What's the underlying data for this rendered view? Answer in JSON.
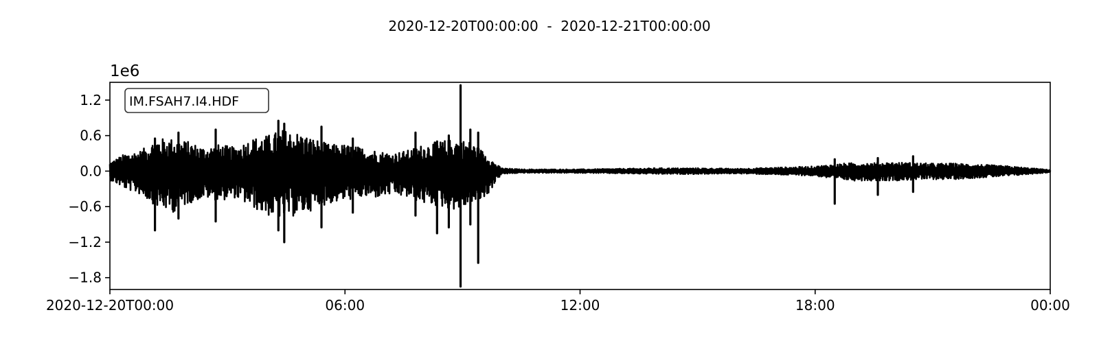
{
  "chart_data": {
    "type": "line",
    "title": "2020-12-20T00:00:00  -  2020-12-21T00:00:00",
    "offset_label": "1e6",
    "legend_label": "IM.FSAH7.I4.HDF",
    "legend_placement": "top-left",
    "grid": false,
    "xlabel": "",
    "ylabel": "",
    "x_range": [
      "2020-12-20T00:00:00",
      "2020-12-21T00:00:00"
    ],
    "xlim_hours": [
      0,
      24
    ],
    "ylim": [
      -2.0,
      1.5
    ],
    "x_ticks": [
      {
        "hour": 0,
        "label": "2020-12-20T00:00"
      },
      {
        "hour": 6,
        "label": "06:00"
      },
      {
        "hour": 12,
        "label": "12:00"
      },
      {
        "hour": 18,
        "label": "18:00"
      },
      {
        "hour": 24,
        "label": "00:00"
      }
    ],
    "y_ticks": [
      {
        "value": 1.2,
        "label": "1.2"
      },
      {
        "value": 0.6,
        "label": "0.6"
      },
      {
        "value": 0.0,
        "label": "0.0"
      },
      {
        "value": -0.6,
        "label": "−0.6"
      },
      {
        "value": -1.2,
        "label": "−1.2"
      },
      {
        "value": -1.8,
        "label": "−1.8"
      }
    ],
    "series": [
      {
        "color": "#000000",
        "envelope": {
          "hour": [
            0,
            0.4,
            0.8,
            1.2,
            1.6,
            2.0,
            2.4,
            2.8,
            3.2,
            3.6,
            4.0,
            4.4,
            4.8,
            5.2,
            5.6,
            6.0,
            6.4,
            6.8,
            7.2,
            7.6,
            8.0,
            8.4,
            8.8,
            9.2,
            9.6,
            9.85,
            10.0,
            10.5,
            11,
            12,
            13,
            14,
            15,
            16,
            17,
            18,
            18.5,
            19,
            19.5,
            20,
            20.5,
            21,
            21.5,
            22,
            22.5,
            23,
            23.5,
            24
          ],
          "upper": [
            0.15,
            0.3,
            0.35,
            0.55,
            0.55,
            0.5,
            0.4,
            0.45,
            0.4,
            0.55,
            0.6,
            0.7,
            0.65,
            0.55,
            0.45,
            0.45,
            0.4,
            0.35,
            0.3,
            0.35,
            0.45,
            0.5,
            0.55,
            0.5,
            0.3,
            0.12,
            0.05,
            0.03,
            0.03,
            0.03,
            0.04,
            0.05,
            0.05,
            0.04,
            0.06,
            0.08,
            0.12,
            0.14,
            0.14,
            0.15,
            0.14,
            0.13,
            0.13,
            0.12,
            0.1,
            0.08,
            0.05,
            0.02
          ],
          "lower": [
            -0.15,
            -0.3,
            -0.4,
            -0.6,
            -0.7,
            -0.55,
            -0.45,
            -0.5,
            -0.45,
            -0.6,
            -0.75,
            -0.8,
            -0.75,
            -0.65,
            -0.55,
            -0.5,
            -0.45,
            -0.45,
            -0.4,
            -0.45,
            -0.55,
            -0.6,
            -0.65,
            -0.6,
            -0.45,
            -0.18,
            -0.05,
            -0.03,
            -0.03,
            -0.03,
            -0.04,
            -0.05,
            -0.05,
            -0.04,
            -0.06,
            -0.08,
            -0.14,
            -0.16,
            -0.16,
            -0.16,
            -0.15,
            -0.14,
            -0.14,
            -0.12,
            -0.1,
            -0.08,
            -0.05,
            -0.02
          ]
        },
        "spikes": [
          {
            "hour": 1.15,
            "min": -1.0,
            "max": 0.55
          },
          {
            "hour": 1.75,
            "min": -0.8,
            "max": 0.65
          },
          {
            "hour": 2.7,
            "min": -0.85,
            "max": 0.7
          },
          {
            "hour": 4.3,
            "min": -1.0,
            "max": 0.85
          },
          {
            "hour": 4.45,
            "min": -1.2,
            "max": 0.8
          },
          {
            "hour": 5.4,
            "min": -0.95,
            "max": 0.75
          },
          {
            "hour": 6.2,
            "min": -0.7,
            "max": 0.55
          },
          {
            "hour": 7.8,
            "min": -0.75,
            "max": 0.65
          },
          {
            "hour": 8.35,
            "min": -1.05,
            "max": 0.5
          },
          {
            "hour": 8.65,
            "min": -0.95,
            "max": 0.6
          },
          {
            "hour": 8.95,
            "min": -1.95,
            "max": 1.45
          },
          {
            "hour": 9.2,
            "min": -0.9,
            "max": 0.7
          },
          {
            "hour": 9.4,
            "min": -1.55,
            "max": 0.65
          },
          {
            "hour": 18.5,
            "min": -0.55,
            "max": 0.2
          },
          {
            "hour": 19.6,
            "min": -0.4,
            "max": 0.22
          },
          {
            "hour": 20.5,
            "min": -0.35,
            "max": 0.25
          }
        ]
      }
    ]
  }
}
